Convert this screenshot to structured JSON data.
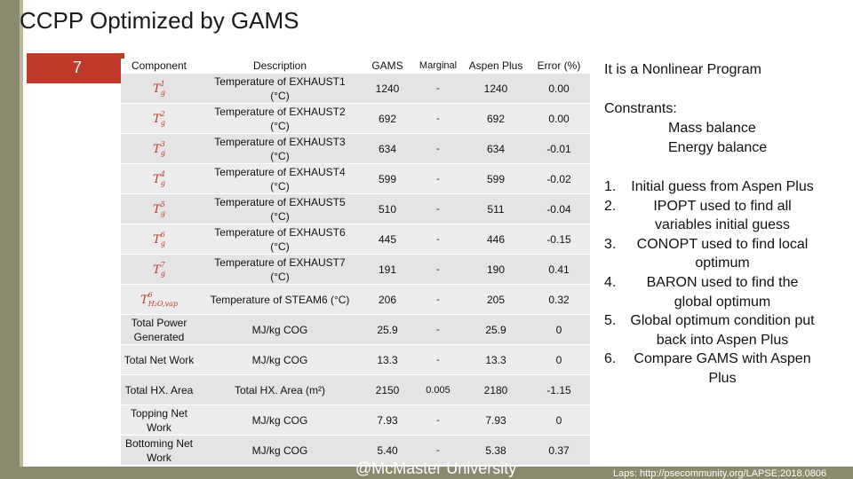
{
  "slide": {
    "title": "CCPP Optimized by GAMS",
    "number": "7",
    "footer_center": "@McMaster University",
    "footer_right": "Laps: http://psecommunity.org/LAPSE:2018.0806"
  },
  "table": {
    "headers": [
      "Component",
      "Description",
      "GAMS",
      "Marginal",
      "Aspen Plus",
      "Error (%)"
    ],
    "rows": [
      {
        "component": "",
        "sym_base": "T",
        "sym_sub": "g",
        "sym_sup": "1",
        "description": "Temperature of EXHAUST1 (°C)",
        "gams": "1240",
        "marginal": "-",
        "aspen": "1240",
        "error": "0.00"
      },
      {
        "component": "",
        "sym_base": "T",
        "sym_sub": "g",
        "sym_sup": "2",
        "description": "Temperature of EXHAUST2 (°C)",
        "gams": "692",
        "marginal": "-",
        "aspen": "692",
        "error": "0.00"
      },
      {
        "component": "",
        "sym_base": "T",
        "sym_sub": "g",
        "sym_sup": "3",
        "description": "Temperature of EXHAUST3 (°C)",
        "gams": "634",
        "marginal": "-",
        "aspen": "634",
        "error": "-0.01"
      },
      {
        "component": "",
        "sym_base": "T",
        "sym_sub": "g",
        "sym_sup": "4",
        "description": "Temperature of EXHAUST4 (°C)",
        "gams": "599",
        "marginal": "-",
        "aspen": "599",
        "error": "-0.02"
      },
      {
        "component": "",
        "sym_base": "T",
        "sym_sub": "g",
        "sym_sup": "5",
        "description": "Temperature of EXHAUST5 (°C)",
        "gams": "510",
        "marginal": "-",
        "aspen": "511",
        "error": "-0.04"
      },
      {
        "component": "",
        "sym_base": "T",
        "sym_sub": "g",
        "sym_sup": "6",
        "description": "Temperature of EXHAUST6 (°C)",
        "gams": "445",
        "marginal": "-",
        "aspen": "446",
        "error": "-0.15"
      },
      {
        "component": "",
        "sym_base": "T",
        "sym_sub": "g",
        "sym_sup": "7",
        "description": "Temperature of EXHAUST7 (°C)",
        "gams": "191",
        "marginal": "-",
        "aspen": "190",
        "error": "0.41"
      },
      {
        "component": "",
        "sym_base": "T",
        "sym_sub": "H₂O,vap",
        "sym_sup": "6",
        "description": "Temperature of STEAM6 (°C)",
        "gams": "206",
        "marginal": "-",
        "aspen": "205",
        "error": "0.32"
      },
      {
        "component": "Total Power Generated",
        "sym_base": "",
        "sym_sub": "",
        "sym_sup": "",
        "description": "MJ/kg COG",
        "gams": "25.9",
        "marginal": "-",
        "aspen": "25.9",
        "error": "0"
      },
      {
        "component": "Total Net Work",
        "sym_base": "",
        "sym_sub": "",
        "sym_sup": "",
        "description": "MJ/kg COG",
        "gams": "13.3",
        "marginal": "-",
        "aspen": "13.3",
        "error": "0"
      },
      {
        "component": "Total HX. Area",
        "sym_base": "",
        "sym_sub": "",
        "sym_sup": "",
        "description": "Total HX. Area (m²)",
        "gams": "2150",
        "marginal": "0.005",
        "aspen": "2180",
        "error": "-1.15"
      },
      {
        "component": "Topping Net Work",
        "sym_base": "",
        "sym_sub": "",
        "sym_sup": "",
        "description": "MJ/kg COG",
        "gams": "7.93",
        "marginal": "-",
        "aspen": "7.93",
        "error": "0"
      },
      {
        "component": "Bottoming Net Work",
        "sym_base": "",
        "sym_sub": "",
        "sym_sup": "",
        "description": "MJ/kg COG",
        "gams": "5.40",
        "marginal": "-",
        "aspen": "5.38",
        "error": "0.37"
      }
    ]
  },
  "right_panel": {
    "title": "It is a Nonlinear Program",
    "constraints_label": "Constrants:",
    "constraint_1": "Mass balance",
    "constraint_2": "Energy balance",
    "steps": [
      {
        "num": "1.",
        "text": "Initial guess from Aspen Plus"
      },
      {
        "num": "2.",
        "text": "IPOPT used to find all variables initial guess"
      },
      {
        "num": "3.",
        "text": "CONOPT used to find local optimum"
      },
      {
        "num": "4.",
        "text": "BARON used to find the global optimum"
      },
      {
        "num": "5.",
        "text": "Global optimum condition put back into Aspen Plus"
      },
      {
        "num": "6.",
        "text": "Compare GAMS with Aspen Plus"
      }
    ]
  },
  "colors": {
    "accent_red": "#c0392b",
    "stripe": "#8a8a6e",
    "row_bg": "#e4e4e4"
  }
}
